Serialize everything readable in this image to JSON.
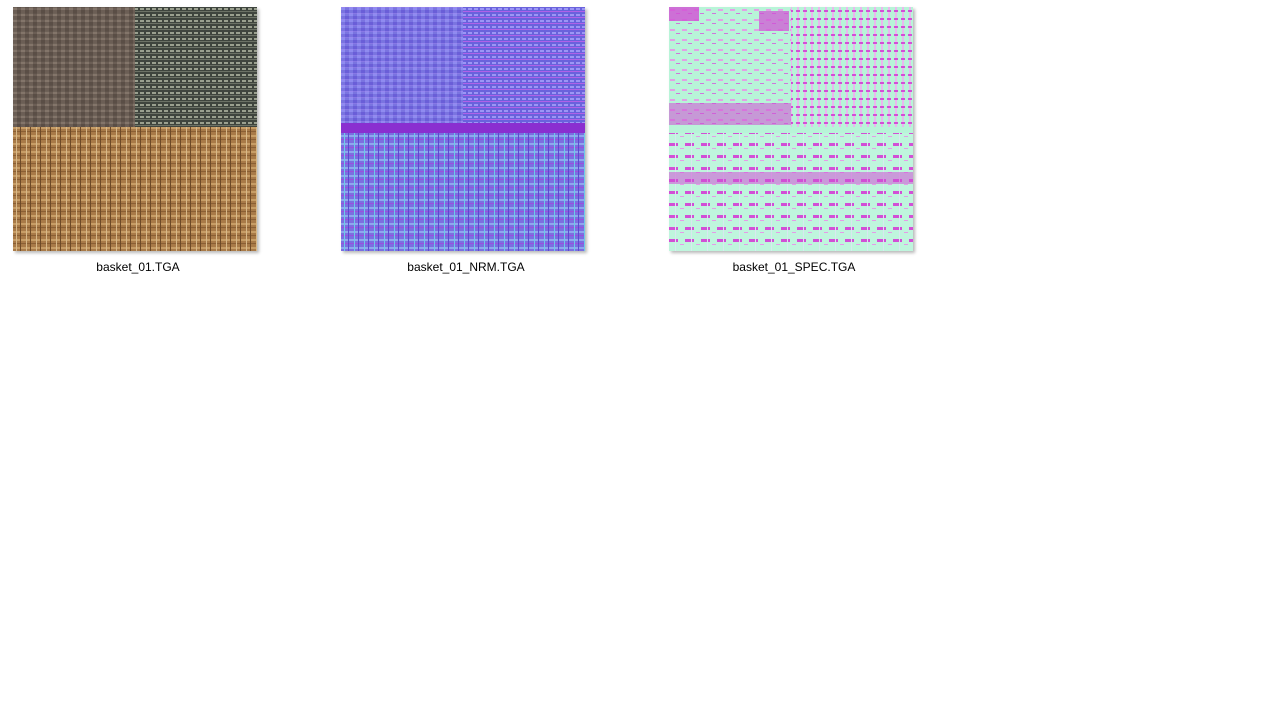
{
  "files": [
    {
      "name": "basket_01.TGA",
      "kind": "diffuse",
      "thumbnail": "woven-basket-texture-diffuse"
    },
    {
      "name": "basket_01_NRM.TGA",
      "kind": "normal-map",
      "thumbnail": "woven-basket-texture-normal"
    },
    {
      "name": "basket_01_SPEC.TGA",
      "kind": "specular-map",
      "thumbnail": "woven-basket-texture-specular"
    }
  ],
  "colors": {
    "background": "#ffffff",
    "diffuse_dark_weave": "#6b5e55",
    "diffuse_grey_weave": "#4e544c",
    "diffuse_tan_weave": "#a87a48",
    "normal_base": "#7a74e0",
    "normal_band": "#8a2fd0",
    "spec_base": "#b8f4d8",
    "spec_highlight": "#d24fd6"
  }
}
